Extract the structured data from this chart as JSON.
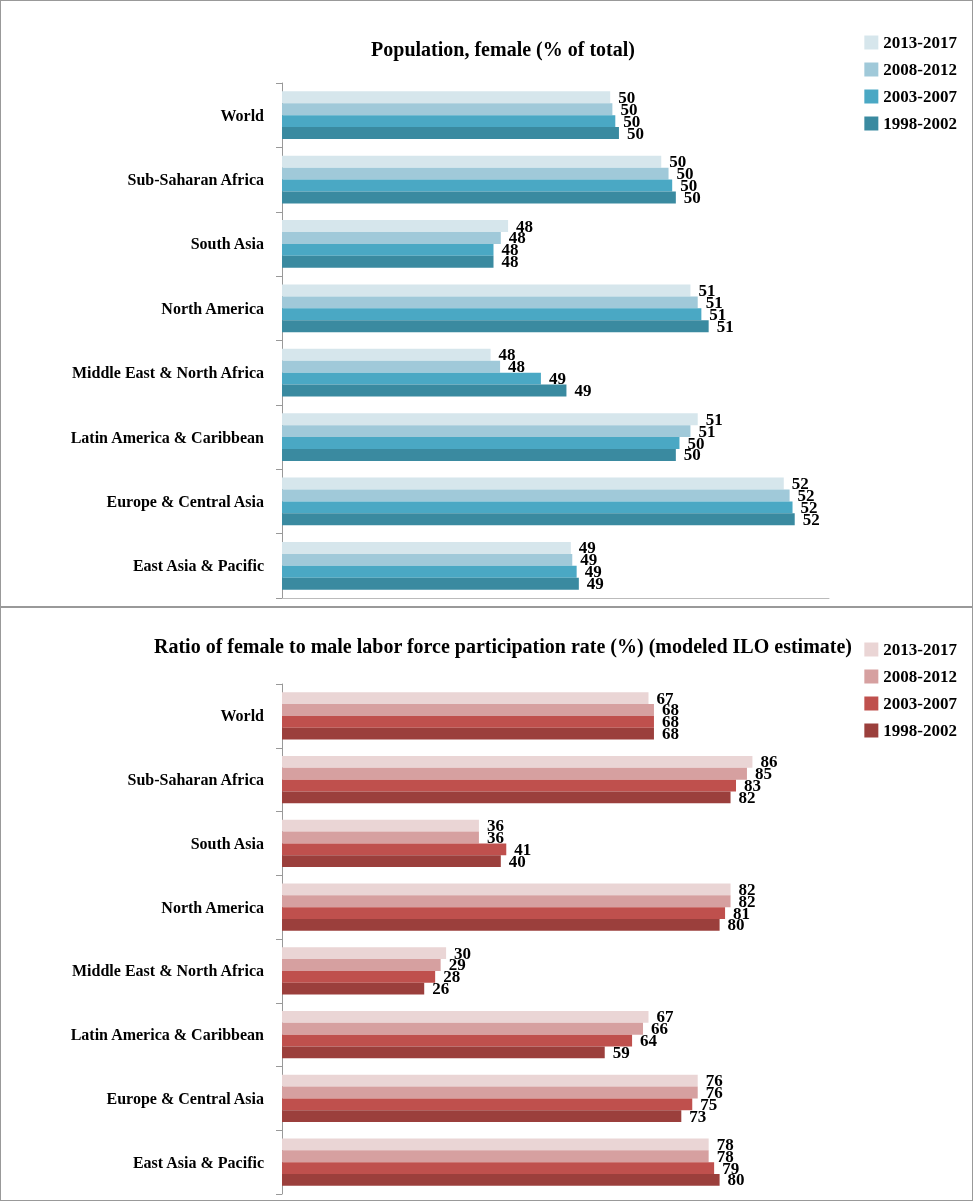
{
  "chart_data": [
    {
      "type": "bar",
      "orientation": "horizontal",
      "title": "Population, female (% of total)",
      "categories": [
        "World",
        "Sub-Saharan Africa",
        "South Asia",
        "North America",
        "Middle East & North Africa",
        "Latin America & Caribbean",
        "Europe & Central Asia",
        "East Asia & Pacific"
      ],
      "series": [
        {
          "name": "2013-2017",
          "color": "#d6e6ec",
          "values": [
            49.5,
            50.2,
            48.1,
            50.6,
            47.86,
            50.7,
            51.88,
            48.96
          ],
          "value_labels": [
            "50",
            "50",
            "48",
            "51",
            "48",
            "51",
            "52",
            "49"
          ]
        },
        {
          "name": "2008-2012",
          "color": "#a0c9d9",
          "values": [
            49.53,
            50.3,
            48.0,
            50.7,
            47.99,
            50.6,
            51.96,
            48.98
          ],
          "value_labels": [
            "50",
            "50",
            "48",
            "51",
            "48",
            "51",
            "52",
            "49"
          ]
        },
        {
          "name": "2003-2007",
          "color": "#4aa8c4",
          "values": [
            49.57,
            50.35,
            47.9,
            50.75,
            48.55,
            50.45,
            52.0,
            49.04
          ],
          "value_labels": [
            "50",
            "50",
            "48",
            "51",
            "49",
            "50",
            "52",
            "49"
          ]
        },
        {
          "name": "1998-2002",
          "color": "#3a8aa0",
          "values": [
            49.62,
            50.4,
            47.9,
            50.85,
            48.9,
            50.4,
            52.03,
            49.07
          ],
          "value_labels": [
            "50",
            "50",
            "48",
            "51",
            "49",
            "50",
            "52",
            "49"
          ]
        }
      ],
      "xlim": [
        45,
        52.5
      ],
      "tick_labels": "y",
      "grid": false,
      "legend": "top right"
    },
    {
      "type": "bar",
      "orientation": "horizontal",
      "title": "Ratio of female to male labor force participation rate (%) (modeled ILO estimate)",
      "categories": [
        "World",
        "Sub-Saharan Africa",
        "South Asia",
        "North America",
        "Middle East & North Africa",
        "Latin America & Caribbean",
        "Europe & Central Asia",
        "East Asia & Pacific"
      ],
      "series": [
        {
          "name": "2013-2017",
          "color": "#ead5d5",
          "values": [
            67,
            86,
            36,
            82,
            30,
            67,
            76,
            78
          ]
        },
        {
          "name": "2008-2012",
          "color": "#d6a0a0",
          "values": [
            68,
            85,
            36,
            82,
            29,
            66,
            76,
            78
          ]
        },
        {
          "name": "2003-2007",
          "color": "#bf504d",
          "values": [
            68,
            83,
            41,
            81,
            28,
            64,
            75,
            79
          ]
        },
        {
          "name": "1998-2002",
          "color": "#9b3f3c",
          "values": [
            68,
            82,
            40,
            80,
            26,
            59,
            73,
            80
          ]
        }
      ],
      "data_labels": true,
      "tick_labels": "y",
      "grid": false,
      "legend": "top right"
    }
  ]
}
